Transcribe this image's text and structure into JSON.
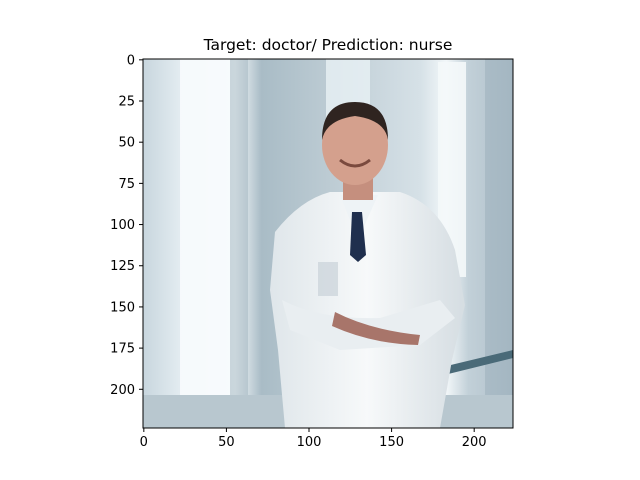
{
  "chart_data": {
    "type": "image",
    "title": "Target: doctor/ Prediction: nurse",
    "xlabel": "",
    "ylabel": "",
    "xlim": [
      -0.5,
      223.5
    ],
    "ylim": [
      223.5,
      -0.5
    ],
    "x_ticks": [
      0,
      50,
      100,
      150,
      200
    ],
    "y_ticks": [
      0,
      25,
      50,
      75,
      100,
      125,
      150,
      175,
      200
    ],
    "image_content": "photo of a smiling man in a white lab coat with arms crossed in a bright hospital corridor",
    "grid": false
  }
}
